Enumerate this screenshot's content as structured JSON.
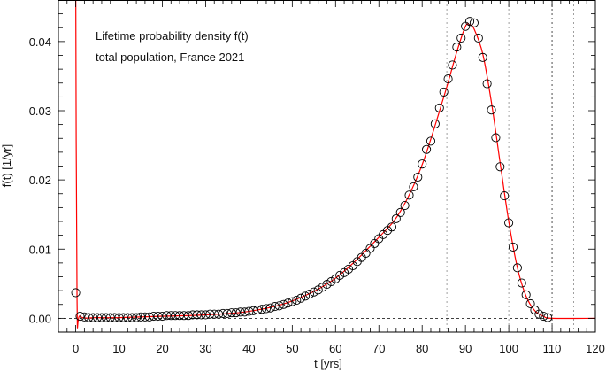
{
  "chart_data": {
    "type": "scatter",
    "annotation": [
      "Lifetime probability density f(t)",
      "total population, France 2021"
    ],
    "xlabel": "t [yrs]",
    "ylabel": "f(t) [1/yr]",
    "xlim": [
      -4,
      120
    ],
    "ylim": [
      -0.002,
      0.046
    ],
    "xticks": [
      0,
      10,
      20,
      30,
      40,
      50,
      60,
      70,
      80,
      90,
      100,
      110,
      120
    ],
    "yticks": [
      0.0,
      0.01,
      0.02,
      0.03,
      0.04
    ],
    "ytick_labels": [
      "0.00",
      "0.01",
      "0.02",
      "0.03",
      "0.04"
    ],
    "grid": false,
    "reference_lines": {
      "horizontal": [
        0
      ],
      "vertical": [
        85.7,
        100,
        110,
        115
      ]
    },
    "colors": {
      "points": "#000000",
      "fit": "#ff0000",
      "axes": "#000000",
      "ref_lines": "#888888"
    },
    "points": {
      "x": [
        0,
        1,
        2,
        3,
        4,
        5,
        6,
        7,
        8,
        9,
        10,
        11,
        12,
        13,
        14,
        15,
        16,
        17,
        18,
        19,
        20,
        21,
        22,
        23,
        24,
        25,
        26,
        27,
        28,
        29,
        30,
        31,
        32,
        33,
        34,
        35,
        36,
        37,
        38,
        39,
        40,
        41,
        42,
        43,
        44,
        45,
        46,
        47,
        48,
        49,
        50,
        51,
        52,
        53,
        54,
        55,
        56,
        57,
        58,
        59,
        60,
        61,
        62,
        63,
        64,
        65,
        66,
        67,
        68,
        69,
        70,
        71,
        72,
        73,
        74,
        75,
        76,
        77,
        78,
        79,
        80,
        81,
        82,
        83,
        84,
        85,
        86,
        87,
        88,
        89,
        90,
        91,
        92,
        93,
        94,
        95,
        96,
        97,
        98,
        99,
        100,
        101,
        102,
        103,
        104,
        105,
        106,
        107,
        108,
        109
      ],
      "y": [
        0.0037,
        0.0003,
        0.0002,
        0.0001,
        0.0001,
        0.0001,
        0.0001,
        0.0001,
        0.0001,
        0.0001,
        0.0001,
        0.0001,
        0.0001,
        0.0001,
        0.0001,
        0.0002,
        0.0002,
        0.0002,
        0.0003,
        0.0003,
        0.0003,
        0.0004,
        0.0004,
        0.0004,
        0.0004,
        0.0004,
        0.0004,
        0.0005,
        0.0005,
        0.0005,
        0.0005,
        0.0006,
        0.0006,
        0.0006,
        0.0007,
        0.0007,
        0.0008,
        0.0008,
        0.0009,
        0.0009,
        0.001,
        0.0011,
        0.0012,
        0.0013,
        0.0014,
        0.0015,
        0.0017,
        0.0018,
        0.002,
        0.0022,
        0.0024,
        0.0026,
        0.0029,
        0.0032,
        0.0035,
        0.0038,
        0.0041,
        0.0045,
        0.0049,
        0.0053,
        0.0057,
        0.0062,
        0.0066,
        0.0071,
        0.0076,
        0.0082,
        0.0088,
        0.0094,
        0.0101,
        0.0108,
        0.0115,
        0.0121,
        0.0127,
        0.0132,
        0.0144,
        0.0153,
        0.0163,
        0.0178,
        0.019,
        0.0204,
        0.0223,
        0.0244,
        0.0256,
        0.0281,
        0.0304,
        0.0327,
        0.0346,
        0.0366,
        0.0392,
        0.0405,
        0.0422,
        0.0429,
        0.0427,
        0.0405,
        0.0377,
        0.0339,
        0.0301,
        0.0261,
        0.0219,
        0.0177,
        0.0138,
        0.0103,
        0.0073,
        0.0051,
        0.0034,
        0.0021,
        0.0012,
        0.0006,
        0.0003,
        0.0001
      ]
    },
    "fit": {
      "x": [
        0,
        0.3,
        1,
        5,
        10,
        20,
        30,
        40,
        50,
        60,
        70,
        75,
        80,
        85,
        88,
        90,
        91,
        92,
        94,
        96,
        98,
        100,
        102,
        104,
        106,
        108,
        110,
        120
      ],
      "y": [
        0.05,
        0.003,
        0.0003,
        0.0001,
        0.0001,
        0.0003,
        0.0005,
        0.001,
        0.0025,
        0.0058,
        0.0117,
        0.0155,
        0.0222,
        0.032,
        0.0385,
        0.0422,
        0.0424,
        0.0418,
        0.0382,
        0.0312,
        0.0225,
        0.014,
        0.0073,
        0.0032,
        0.0011,
        0.0003,
        0.0,
        0.0
      ]
    }
  }
}
